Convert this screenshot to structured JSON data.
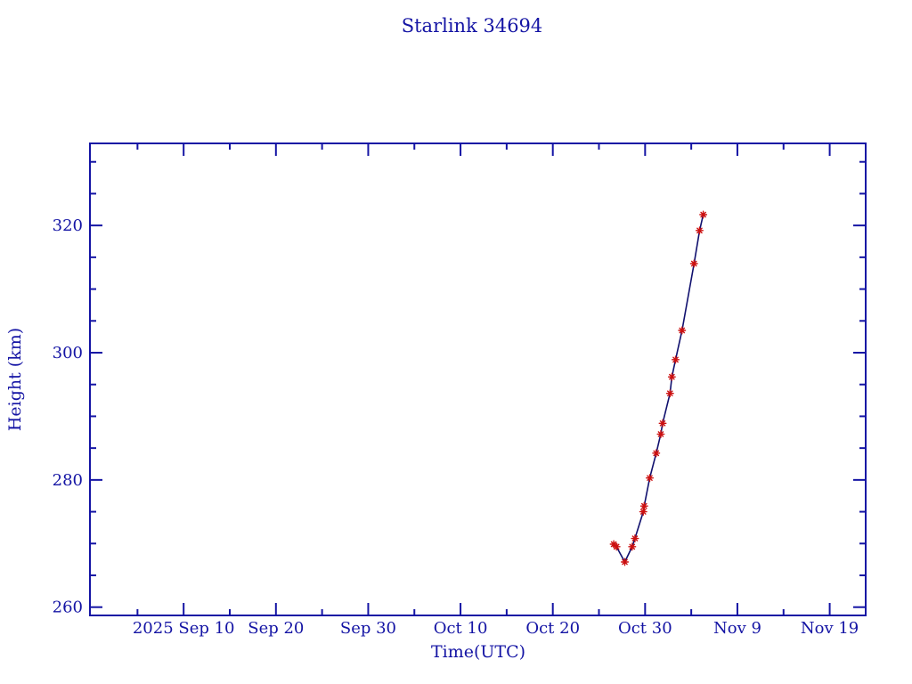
{
  "chart_data": {
    "type": "line",
    "title": "Starlink 34694",
    "xlabel": "Time(UTC)",
    "ylabel": "Height (km)",
    "legend": "none",
    "grid": false,
    "x_domain_days_from_sep10": [
      -10.15,
      73.9
    ],
    "y_domain_km": [
      258.7,
      332.9
    ],
    "x_major_ticks": [
      {
        "label": "2025 Sep 10",
        "day": 0
      },
      {
        "label": "Sep 20",
        "day": 10
      },
      {
        "label": "Sep 30",
        "day": 20
      },
      {
        "label": "Oct 10",
        "day": 30
      },
      {
        "label": "Oct 20",
        "day": 40
      },
      {
        "label": "Oct 30",
        "day": 50
      },
      {
        "label": "Nov  9",
        "day": 60
      },
      {
        "label": "Nov 19",
        "day": 70
      }
    ],
    "x_minor_tick_days": [
      -5,
      5,
      15,
      25,
      35,
      45,
      55,
      65
    ],
    "y_major_ticks": [
      {
        "label": "260",
        "value": 260
      },
      {
        "label": "280",
        "value": 280
      },
      {
        "label": "300",
        "value": 300
      },
      {
        "label": "320",
        "value": 320
      }
    ],
    "y_minor_tick_values": [
      265,
      270,
      275,
      285,
      290,
      295,
      305,
      310,
      315,
      325,
      330
    ],
    "series": [
      {
        "name": "orbit-height",
        "marker": "red-asterisk",
        "points": [
          {
            "date": "Oct 26.6",
            "day": 46.6,
            "height_km": 269.9
          },
          {
            "date": "Oct 26.9",
            "day": 46.9,
            "height_km": 269.5
          },
          {
            "date": "Oct 27.8",
            "day": 47.8,
            "height_km": 267.1
          },
          {
            "date": "Oct 28.6",
            "day": 48.6,
            "height_km": 269.5
          },
          {
            "date": "Oct 28.9",
            "day": 48.9,
            "height_km": 270.8
          },
          {
            "date": "Oct 29.8",
            "day": 49.8,
            "height_km": 275.0
          },
          {
            "date": "Oct 29.9",
            "day": 49.9,
            "height_km": 275.9
          },
          {
            "date": "Oct 30.5",
            "day": 50.5,
            "height_km": 280.3
          },
          {
            "date": "Oct 31.2",
            "day": 51.2,
            "height_km": 284.2
          },
          {
            "date": "Oct 31.7",
            "day": 51.7,
            "height_km": 287.2
          },
          {
            "date": "Oct 31.9",
            "day": 51.9,
            "height_km": 288.9
          },
          {
            "date": "Nov 1.7",
            "day": 52.7,
            "height_km": 293.6
          },
          {
            "date": "Nov 1.9",
            "day": 52.9,
            "height_km": 296.2
          },
          {
            "date": "Nov 2.3",
            "day": 53.3,
            "height_km": 298.9
          },
          {
            "date": "Nov 3.0",
            "day": 54.0,
            "height_km": 303.5
          },
          {
            "date": "Nov 4.3",
            "day": 55.3,
            "height_km": 314.0
          },
          {
            "date": "Nov 4.9",
            "day": 55.9,
            "height_km": 319.2
          },
          {
            "date": "Nov 5.3",
            "day": 56.3,
            "height_km": 321.7
          }
        ]
      }
    ],
    "colors": {
      "axis": "#1414a4",
      "text": "#1414a4",
      "line": "#10106e",
      "marker": "#cc1010",
      "background": "#ffffff"
    }
  }
}
